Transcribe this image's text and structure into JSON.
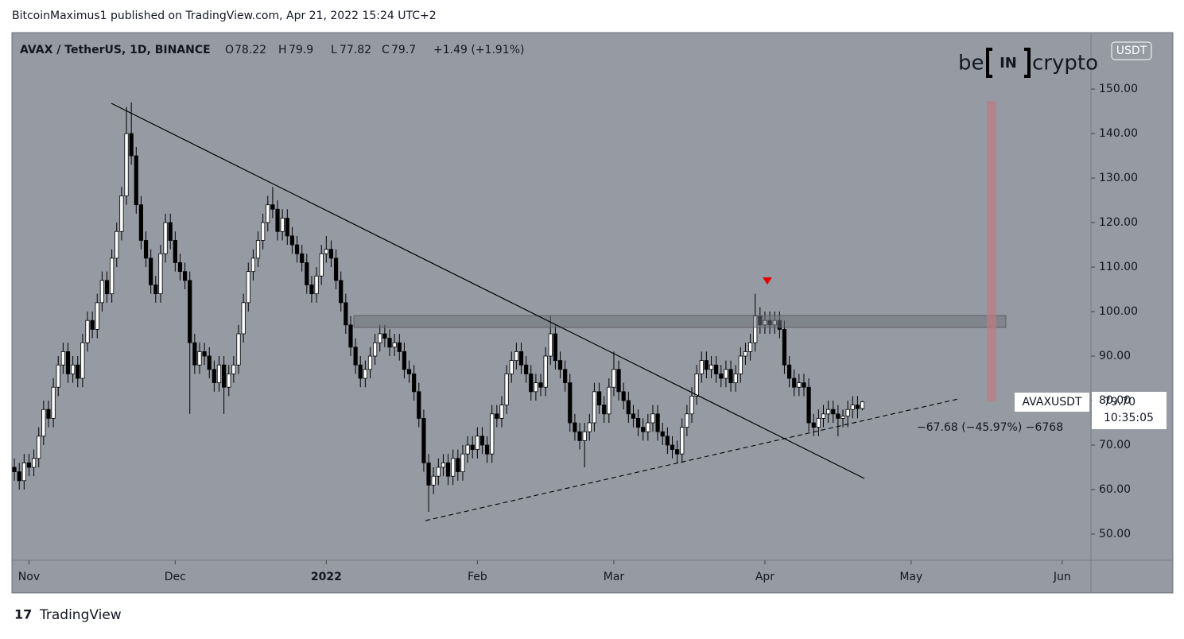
{
  "chart_data": {
    "type": "candlestick",
    "header": {
      "published": "BitcoinMaximus1 published on TradingView.com, Apr 21, 2022 15:24 UTC+2",
      "symbol": "AVAX / TetherUS, 1D, BINANCE",
      "o_label": "O",
      "h_label": "H",
      "l_label": "L",
      "c_label": "C",
      "change": "+1.49 (+1.91%)"
    },
    "logo": {
      "left": "be",
      "mid": "IN",
      "right": "crypto"
    },
    "currency": "USDT",
    "price_tag": {
      "symbol": "AVAXUSDT",
      "value_label": "79.70",
      "countdown": "10:35:05"
    },
    "measure_label": "−67.68 (−45.97%) −6768",
    "footer": "TradingView",
    "up_color": "#ffffff",
    "down_color": "#000000",
    "background": "#959aa3",
    "xlim": [
      -0.5,
      220.9
    ],
    "ylim": [
      44.1,
      162.7
    ],
    "xticks": [
      {
        "value": 3,
        "label": "Nov"
      },
      {
        "value": 33,
        "label": "Dec"
      },
      {
        "value": 64,
        "label": "2022"
      },
      {
        "value": 95,
        "label": "Feb"
      },
      {
        "value": 123,
        "label": "Mar"
      },
      {
        "value": 154,
        "label": "Apr"
      },
      {
        "value": 184,
        "label": "May"
      },
      {
        "value": 215,
        "label": "Jun"
      }
    ],
    "yticks": [
      {
        "value": 50,
        "label": "50.00"
      },
      {
        "value": 60,
        "label": "60.00"
      },
      {
        "value": 70,
        "label": "70.00"
      },
      {
        "value": 80,
        "label": "80.00"
      },
      {
        "value": 90,
        "label": "90.00"
      },
      {
        "value": 100,
        "label": "100.00"
      },
      {
        "value": 110,
        "label": "110.00"
      },
      {
        "value": 120,
        "label": "120.00"
      },
      {
        "value": 130,
        "label": "130.00"
      },
      {
        "value": 140,
        "label": "140.00"
      },
      {
        "value": 150,
        "label": "150.00"
      }
    ],
    "open": [
      65,
      64,
      62,
      66,
      65,
      67,
      72,
      78,
      76,
      83,
      88,
      91,
      86,
      88,
      85,
      93,
      98,
      96,
      102,
      107,
      104,
      112,
      118,
      126,
      140,
      135,
      124,
      116,
      112,
      106,
      104,
      113,
      120,
      116,
      111,
      109,
      107,
      93,
      88,
      91,
      90,
      87,
      84,
      88,
      83,
      86,
      88,
      95,
      102,
      109,
      112,
      116,
      120,
      124,
      123,
      118,
      121,
      117,
      115,
      113,
      111,
      106,
      104,
      108,
      113,
      114,
      112,
      107,
      102,
      97,
      92,
      88,
      85,
      87,
      90,
      93,
      95,
      94,
      92,
      93,
      91,
      87,
      86,
      82,
      76,
      66,
      61,
      63,
      65,
      66,
      63,
      67,
      64,
      68,
      70,
      69,
      72,
      70,
      68,
      77,
      76,
      79,
      86,
      89,
      91,
      88,
      86,
      82,
      84,
      83,
      90,
      95,
      89,
      87,
      84,
      75,
      73,
      71,
      73,
      75,
      82,
      79,
      77,
      83,
      87,
      82,
      80,
      77,
      76,
      74,
      73,
      75,
      77,
      73,
      72,
      70,
      69,
      68,
      74,
      77,
      81,
      86,
      89,
      87,
      88,
      86,
      85,
      87,
      84,
      86,
      90,
      91,
      93,
      99,
      97,
      98,
      97,
      98,
      96,
      88,
      85,
      83,
      84,
      83,
      75,
      74,
      76,
      77,
      78,
      77,
      76,
      76.5,
      78,
      79,
      78.22
    ],
    "high": [
      67,
      66,
      68,
      68,
      69,
      74,
      80,
      80,
      85,
      90,
      93,
      93,
      90,
      90,
      95,
      100,
      100,
      104,
      109,
      109,
      114,
      120,
      128,
      146,
      147,
      137,
      126,
      118,
      114,
      108,
      115,
      122,
      122,
      118,
      113,
      111,
      109,
      95,
      93,
      93,
      92,
      89,
      90,
      90,
      88,
      90,
      97,
      104,
      111,
      114,
      118,
      122,
      126,
      128,
      125,
      123,
      123,
      119,
      117,
      115,
      113,
      108,
      110,
      115,
      117,
      116,
      114,
      109,
      104,
      99,
      94,
      90,
      89,
      92,
      95,
      97,
      97,
      96,
      95,
      95,
      93,
      89,
      88,
      84,
      78,
      68,
      65,
      67,
      68,
      68,
      69,
      69,
      70,
      72,
      72,
      74,
      74,
      72,
      79,
      79,
      81,
      88,
      91,
      93,
      93,
      90,
      88,
      86,
      86,
      92,
      99,
      97,
      91,
      89,
      86,
      77,
      75,
      75,
      77,
      84,
      84,
      81,
      85,
      91,
      89,
      84,
      82,
      79,
      78,
      76,
      77,
      79,
      79,
      75,
      74,
      72,
      71,
      76,
      79,
      83,
      88,
      91,
      91,
      90,
      90,
      88,
      89,
      89,
      88,
      92,
      93,
      95,
      104,
      101,
      100,
      100,
      100,
      100,
      98,
      90,
      87,
      86,
      86,
      85,
      77,
      78,
      79,
      80,
      80,
      79,
      78,
      80,
      81,
      81,
      79.9
    ],
    "low": [
      62,
      60,
      60,
      63,
      63,
      65,
      70,
      74,
      74,
      81,
      86,
      84,
      84,
      83,
      83,
      91,
      94,
      94,
      100,
      102,
      102,
      110,
      116,
      124,
      133,
      122,
      114,
      110,
      104,
      102,
      102,
      111,
      114,
      109,
      107,
      105,
      77,
      86,
      86,
      88,
      85,
      82,
      82,
      77,
      81,
      84,
      86,
      93,
      100,
      107,
      110,
      114,
      118,
      121,
      116,
      116,
      115,
      113,
      111,
      109,
      104,
      102,
      102,
      106,
      111,
      110,
      105,
      100,
      95,
      90,
      86,
      83,
      83,
      85,
      88,
      91,
      92,
      90,
      90,
      89,
      85,
      84,
      80,
      74,
      64,
      55,
      59,
      61,
      63,
      61,
      61,
      62,
      62,
      66,
      67,
      67,
      68,
      66,
      66,
      74,
      74,
      77,
      84,
      87,
      86,
      84,
      80,
      80,
      81,
      81,
      88,
      87,
      85,
      82,
      73,
      71,
      69,
      65,
      71,
      73,
      77,
      75,
      75,
      81,
      80,
      78,
      75,
      74,
      72,
      71,
      71,
      73,
      71,
      70,
      68,
      67,
      66,
      66,
      72,
      75,
      79,
      84,
      85,
      85,
      84,
      83,
      83,
      82,
      82,
      84,
      88,
      89,
      91,
      95,
      95,
      95,
      95,
      94,
      86,
      83,
      81,
      81,
      81,
      73,
      72,
      72,
      74,
      75,
      75,
      72,
      74,
      74,
      76,
      76,
      77.82
    ],
    "close": [
      64,
      62,
      66,
      65,
      67,
      72,
      78,
      76,
      83,
      88,
      91,
      86,
      88,
      85,
      93,
      98,
      96,
      102,
      107,
      104,
      112,
      118,
      126,
      140,
      135,
      124,
      116,
      112,
      106,
      104,
      113,
      120,
      116,
      111,
      109,
      107,
      93,
      88,
      91,
      90,
      87,
      84,
      88,
      83,
      86,
      88,
      95,
      102,
      109,
      112,
      116,
      120,
      124,
      123,
      118,
      121,
      117,
      115,
      113,
      111,
      106,
      104,
      108,
      113,
      114,
      112,
      107,
      102,
      97,
      92,
      88,
      85,
      87,
      90,
      93,
      95,
      94,
      92,
      93,
      91,
      87,
      86,
      82,
      76,
      66,
      61,
      63,
      65,
      66,
      63,
      67,
      64,
      68,
      70,
      69,
      72,
      70,
      68,
      77,
      76,
      79,
      86,
      89,
      91,
      88,
      86,
      82,
      84,
      83,
      90,
      95,
      89,
      87,
      84,
      75,
      73,
      71,
      73,
      75,
      82,
      79,
      77,
      83,
      87,
      82,
      80,
      77,
      76,
      74,
      73,
      75,
      77,
      73,
      72,
      70,
      69,
      68,
      74,
      77,
      81,
      86,
      89,
      87,
      88,
      86,
      85,
      87,
      84,
      86,
      90,
      91,
      93,
      99,
      97,
      98,
      97,
      98,
      96,
      88,
      85,
      83,
      84,
      83,
      75,
      74,
      76,
      77,
      78,
      77,
      76,
      76.5,
      78,
      79,
      78.21,
      79.7
    ]
  }
}
